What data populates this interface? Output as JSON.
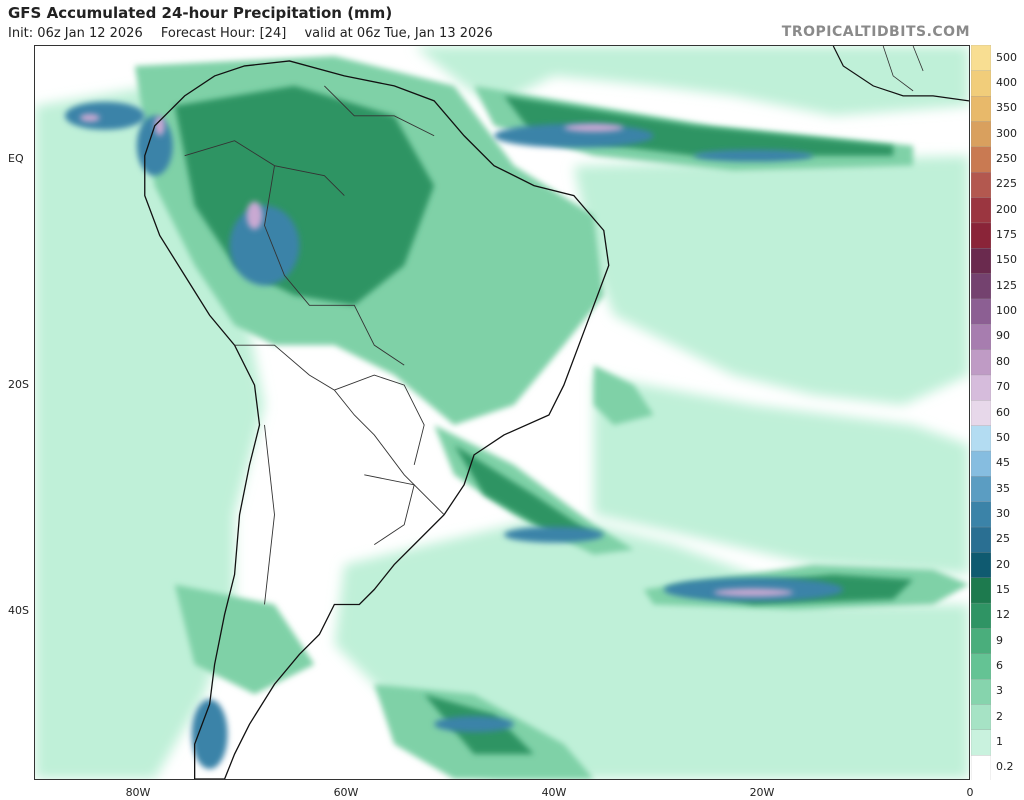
{
  "header": {
    "title": "GFS Accumulated 24-hour Precipitation (mm)",
    "init": "Init: 06z Jan 12 2026",
    "forecast_hour": "Forecast Hour: [24]",
    "valid": "valid at 06z Tue, Jan 13 2026",
    "brand": "TROPICALTIDBITS.COM"
  },
  "axes": {
    "lat_labels": [
      "EQ",
      "20S",
      "40S"
    ],
    "lon_labels": [
      "80W",
      "60W",
      "40W",
      "20W",
      "0"
    ]
  },
  "colorbar": {
    "levels": [
      "0.2",
      "1",
      "2",
      "3",
      "6",
      "9",
      "12",
      "15",
      "20",
      "25",
      "30",
      "35",
      "45",
      "50",
      "60",
      "70",
      "80",
      "90",
      "100",
      "125",
      "150",
      "175",
      "200",
      "225",
      "250",
      "300",
      "350",
      "400",
      "500"
    ],
    "colors": [
      "#ffffff",
      "#c9f2de",
      "#a6e3c5",
      "#86d4ad",
      "#64c394",
      "#4aae7c",
      "#2f9464",
      "#1d7a4e",
      "#0f5a70",
      "#2a6f92",
      "#3b83a8",
      "#5b9dc2",
      "#86bde0",
      "#b3dcf2",
      "#e7d8ea",
      "#d6bcdc",
      "#bf9bc5",
      "#a77daf",
      "#8c5f93",
      "#74426f",
      "#6a2a4e",
      "#8a2438",
      "#9b3640",
      "#b3584f",
      "#c97a52",
      "#d9a05e",
      "#e8b96a",
      "#f1cd7a",
      "#f8de92"
    ]
  },
  "map": {
    "ocean_color": "#ffffff",
    "coast_color": "#111111",
    "border_color": "#333333"
  }
}
